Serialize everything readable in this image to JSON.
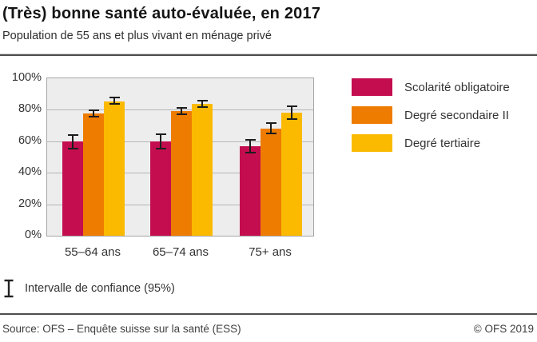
{
  "header": {
    "title": "(Très) bonne santé auto-évaluée, en 2017",
    "subtitle": "Population de 55 ans et plus vivant en ménage privé"
  },
  "chart_data": {
    "type": "bar",
    "title": "(Très) bonne santé auto-évaluée, en 2017",
    "subtitle": "Population de 55 ans et plus vivant en ménage privé",
    "categories": [
      "55–64 ans",
      "65–74 ans",
      "75+ ans"
    ],
    "series": [
      {
        "name": "Scolarité obligatoire",
        "color": "#c40d4f",
        "values": [
          60,
          60,
          57
        ],
        "ci_low": [
          55,
          55,
          52.5
        ],
        "ci_high": [
          64.5,
          65,
          61.5
        ]
      },
      {
        "name": "Degré secondaire II",
        "color": "#ee7c00",
        "values": [
          77.5,
          79,
          68
        ],
        "ci_low": [
          75,
          76.5,
          64.5
        ],
        "ci_high": [
          80,
          81.5,
          72
        ]
      },
      {
        "name": "Degré tertiaire",
        "color": "#fbba00",
        "values": [
          85.5,
          84,
          78
        ],
        "ci_low": [
          83,
          81,
          73.5
        ],
        "ci_high": [
          88.5,
          86.5,
          82.5
        ]
      }
    ],
    "ylim": [
      0,
      100
    ],
    "ytick_step": 20,
    "ytick_labels": [
      "0%",
      "20%",
      "40%",
      "60%",
      "80%",
      "100%"
    ],
    "unit": "%",
    "grid": true,
    "legend_position": "right",
    "error_bars": "95% confidence interval",
    "plot_background": "#ededed",
    "gridline_color": "#b5b5b5",
    "errorbar_color": "#1c1c1c"
  },
  "annotations": {
    "ci_note": "Intervalle de confiance (95%)"
  },
  "footer": {
    "source": "Source: OFS – Enquête suisse sur la santé (ESS)",
    "copyright": "© OFS 2019"
  }
}
